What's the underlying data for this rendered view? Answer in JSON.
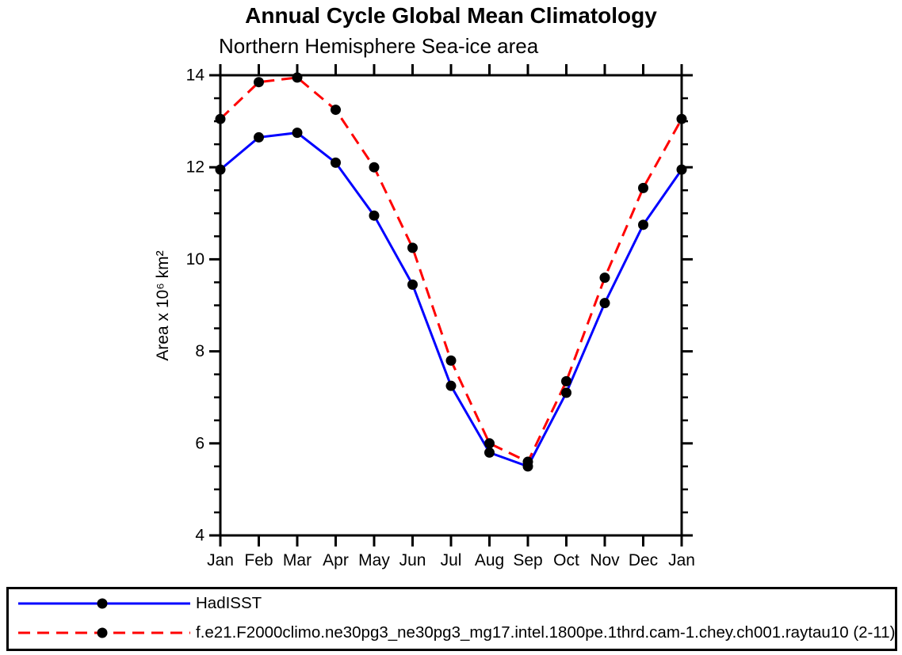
{
  "chart_data": {
    "type": "line",
    "title": "Annual Cycle Global Mean Climatology",
    "subtitle": "Northern Hemisphere Sea-ice area",
    "ylabel": "Area x 10⁶ km²",
    "x_categories": [
      "Jan",
      "Feb",
      "Mar",
      "Apr",
      "May",
      "Jun",
      "Jul",
      "Aug",
      "Sep",
      "Oct",
      "Nov",
      "Dec",
      "Jan"
    ],
    "ylim": [
      4,
      14
    ],
    "y_major_ticks": [
      4,
      6,
      8,
      10,
      12,
      14
    ],
    "y_minor_step": 0.5,
    "grid": false,
    "legend_position": "bottom-left-box",
    "marker": "filled-circle",
    "marker_color": "#000000",
    "axis_color": "#000000",
    "background_color": "#ffffff",
    "series": [
      {
        "name": "HadISST",
        "color": "#0000ff",
        "line_style": "solid",
        "values": [
          11.95,
          12.65,
          12.75,
          12.1,
          10.95,
          9.45,
          7.25,
          5.8,
          5.5,
          7.1,
          9.05,
          10.75,
          11.95
        ]
      },
      {
        "name": "f.e21.F2000climo.ne30pg3_ne30pg3_mg17.intel.1800pe.1thrd.cam-1.chey.ch001.raytau10 (2-11)",
        "color": "#ff0000",
        "line_style": "dashed",
        "values": [
          13.05,
          13.85,
          13.95,
          13.25,
          12.0,
          10.25,
          7.8,
          6.0,
          5.6,
          7.35,
          9.6,
          11.55,
          13.05
        ]
      }
    ]
  }
}
